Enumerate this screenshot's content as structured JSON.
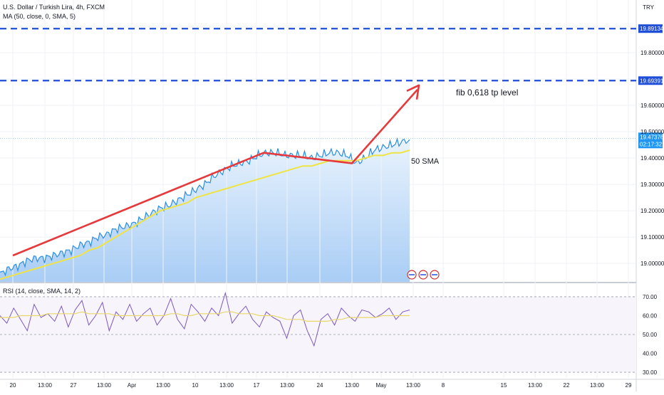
{
  "header": {
    "symbol_title": "U.S. Dollar / Turkish Lira, 4h, FXCM",
    "ma_indicator": "MA (50, close, 0, SMA, 5)",
    "currency": "TRY"
  },
  "rsi_header": "RSI (14, close, SMA, 14, 2)",
  "colors": {
    "price_line": "#2a8ee0",
    "sma_line": "#f0e442",
    "annotation_red": "#e5393c",
    "dashed_level": "#1f4fd8",
    "rsi_line": "#7e57c2",
    "rsi_ma": "#e8d86a",
    "area_top": "#e9f3fd",
    "area_bottom": "#a9cdf5"
  },
  "chart_data": [
    {
      "type": "line",
      "name": "price",
      "xlabels": [
        "20",
        "13:00",
        "27",
        "13:00",
        "Apr",
        "13:00",
        "10",
        "13:00",
        "17",
        "13:00",
        "24",
        "13:00",
        "May",
        "13:00",
        "8",
        "15",
        "13:00",
        "22",
        "13:00",
        "29"
      ],
      "y_ticks": [
        "19.80000",
        "19.60000",
        "19.50000",
        "19.40000",
        "19.30000",
        "19.20000",
        "19.10000",
        "19.00000"
      ],
      "ylim": [
        18.93,
        20.0
      ],
      "series": [
        {
          "role": "price",
          "values": [
            18.96,
            18.98,
            18.99,
            19.01,
            19.02,
            19.02,
            19.03,
            19.04,
            19.05,
            19.07,
            19.08,
            19.1,
            19.11,
            19.13,
            19.14,
            19.15,
            19.17,
            19.19,
            19.21,
            19.22,
            19.24,
            19.26,
            19.28,
            19.3,
            19.33,
            19.35,
            19.37,
            19.38,
            19.39,
            19.41,
            19.42,
            19.42,
            19.41,
            19.41,
            19.41,
            19.4,
            19.41,
            19.42,
            19.42,
            19.41,
            19.38,
            19.4,
            19.43,
            19.44,
            19.45,
            19.46,
            19.47
          ]
        },
        {
          "role": "sma",
          "values": [
            18.94,
            18.95,
            18.96,
            18.97,
            18.98,
            18.99,
            19.0,
            19.01,
            19.02,
            19.03,
            19.05,
            19.06,
            19.08,
            19.1,
            19.12,
            19.14,
            19.16,
            19.18,
            19.2,
            19.21,
            19.22,
            19.23,
            19.25,
            19.26,
            19.27,
            19.28,
            19.29,
            19.3,
            19.31,
            19.32,
            19.33,
            19.34,
            19.35,
            19.36,
            19.37,
            19.37,
            19.38,
            19.39,
            19.39,
            19.39,
            19.39,
            19.4,
            19.41,
            19.41,
            19.42,
            19.42,
            19.43
          ]
        }
      ],
      "levels": [
        {
          "value": 19.89134,
          "label": "19.89134"
        },
        {
          "value": 19.69391,
          "label": "19.69391"
        }
      ],
      "last_price": "19.47376",
      "countdown": "02:17:32",
      "annotations": {
        "fib_text": "fib 0,618 tp level",
        "sma_text": "50 SMA"
      }
    },
    {
      "type": "line",
      "name": "rsi",
      "y_ticks": [
        "70.00",
        "60.00",
        "50.00",
        "40.00",
        "30.00"
      ],
      "ylim": [
        27,
        73
      ],
      "values": [
        60,
        56,
        64,
        58,
        52,
        66,
        59,
        61,
        57,
        65,
        54,
        63,
        68,
        55,
        60,
        67,
        52,
        62,
        58,
        66,
        57,
        61,
        64,
        55,
        60,
        69,
        58,
        53,
        66,
        62,
        57,
        64,
        60,
        72,
        56,
        61,
        65,
        58,
        54,
        62,
        59,
        57,
        48,
        60,
        63,
        52,
        44,
        58,
        61,
        55,
        64,
        60,
        57,
        63,
        62,
        59,
        61,
        64,
        58,
        62,
        63
      ],
      "ma_values": [
        59,
        59,
        59,
        60,
        60,
        60,
        60,
        61,
        61,
        61,
        61,
        61,
        62,
        61,
        61,
        61,
        61,
        60,
        60,
        60,
        60,
        60,
        60,
        60,
        60,
        61,
        61,
        60,
        60,
        61,
        61,
        61,
        61,
        62,
        62,
        61,
        61,
        61,
        60,
        60,
        60,
        59,
        58,
        58,
        58,
        57,
        57,
        57,
        57,
        58,
        58,
        59,
        59,
        59,
        59,
        59,
        60,
        60,
        60,
        60,
        60
      ]
    }
  ]
}
